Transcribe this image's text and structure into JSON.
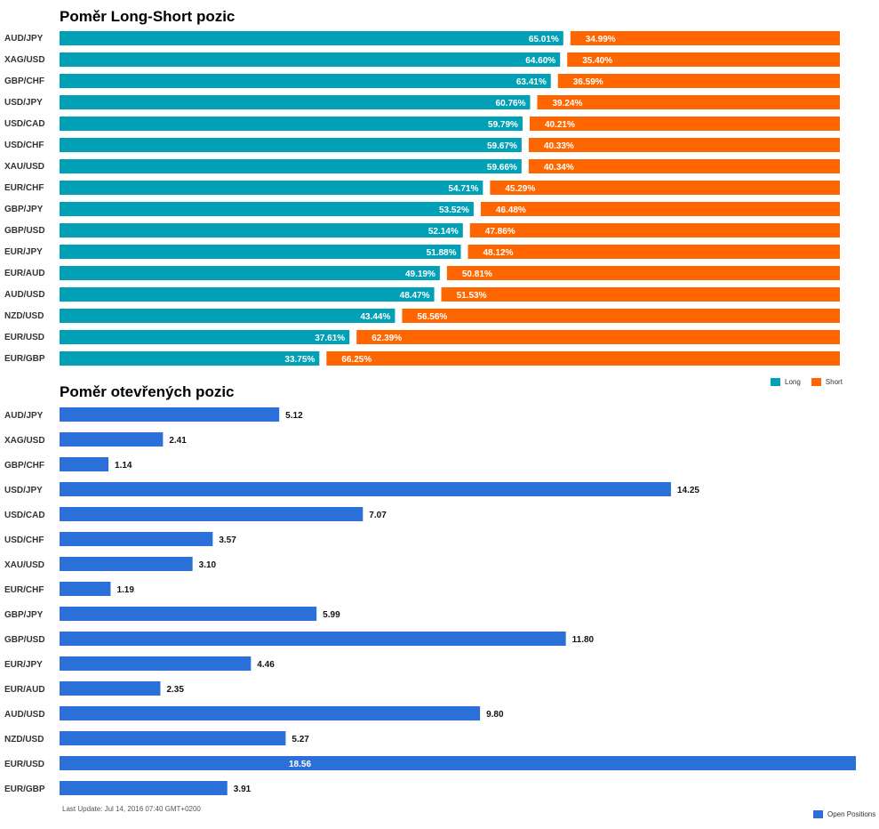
{
  "chart_data": [
    {
      "type": "bar",
      "title": "Poměr Long-Short pozic",
      "orientation": "horizontal-stacked",
      "categories": [
        "AUD/JPY",
        "XAG/USD",
        "GBP/CHF",
        "USD/JPY",
        "USD/CAD",
        "USD/CHF",
        "XAU/USD",
        "EUR/CHF",
        "GBP/JPY",
        "GBP/USD",
        "EUR/JPY",
        "EUR/AUD",
        "AUD/USD",
        "NZD/USD",
        "EUR/USD",
        "EUR/GBP"
      ],
      "series": [
        {
          "name": "Long",
          "color": "#00a0b6",
          "values": [
            65.01,
            64.6,
            63.41,
            60.76,
            59.79,
            59.67,
            59.66,
            54.71,
            53.52,
            52.14,
            51.88,
            49.19,
            48.47,
            43.44,
            37.61,
            33.75
          ],
          "labels": [
            "65.01%",
            "64.60%",
            "63.41%",
            "60.76%",
            "59.79%",
            "59.67%",
            "59.66%",
            "54.71%",
            "53.52%",
            "52.14%",
            "51.88%",
            "49.19%",
            "48.47%",
            "43.44%",
            "37.61%",
            "33.75%"
          ]
        },
        {
          "name": "Short",
          "color": "#ff6600",
          "values": [
            34.99,
            35.4,
            36.59,
            39.24,
            40.21,
            40.33,
            40.34,
            45.29,
            46.48,
            47.86,
            48.12,
            50.81,
            51.53,
            56.56,
            62.39,
            66.25
          ],
          "labels": [
            "34.99%",
            "35.40%",
            "36.59%",
            "39.24%",
            "40.21%",
            "40.33%",
            "40.34%",
            "45.29%",
            "46.48%",
            "47.86%",
            "48.12%",
            "50.81%",
            "51.53%",
            "56.56%",
            "62.39%",
            "66.25%"
          ]
        }
      ],
      "xlim": [
        0,
        100
      ],
      "legend": "bottom-right"
    },
    {
      "type": "bar",
      "title": "Poměr otevřených pozic",
      "orientation": "horizontal",
      "categories": [
        "AUD/JPY",
        "XAG/USD",
        "GBP/CHF",
        "USD/JPY",
        "USD/CAD",
        "USD/CHF",
        "XAU/USD",
        "EUR/CHF",
        "GBP/JPY",
        "GBP/USD",
        "EUR/JPY",
        "EUR/AUD",
        "AUD/USD",
        "NZD/USD",
        "EUR/USD",
        "EUR/GBP"
      ],
      "series": [
        {
          "name": "Open Positions",
          "color": "#2b6fd9",
          "values": [
            5.12,
            2.41,
            1.14,
            14.25,
            7.07,
            3.57,
            3.1,
            1.19,
            5.99,
            11.8,
            4.46,
            2.35,
            9.8,
            5.27,
            18.56,
            3.91
          ],
          "labels": [
            "5.12",
            "2.41",
            "1.14",
            "14.25",
            "7.07",
            "3.57",
            "3.10",
            "1.19",
            "5.99",
            "11.80",
            "4.46",
            "2.35",
            "9.80",
            "5.27",
            "18.56",
            "3.91"
          ]
        }
      ],
      "xlim": [
        0,
        18.56
      ],
      "legend": "bottom-right"
    }
  ],
  "footer": {
    "last_update": "Last Update: Jul 14, 2016 07:40 GMT+0200"
  },
  "legend1": {
    "long": "Long",
    "short": "Short"
  },
  "legend2": {
    "open": "Open Positions"
  }
}
